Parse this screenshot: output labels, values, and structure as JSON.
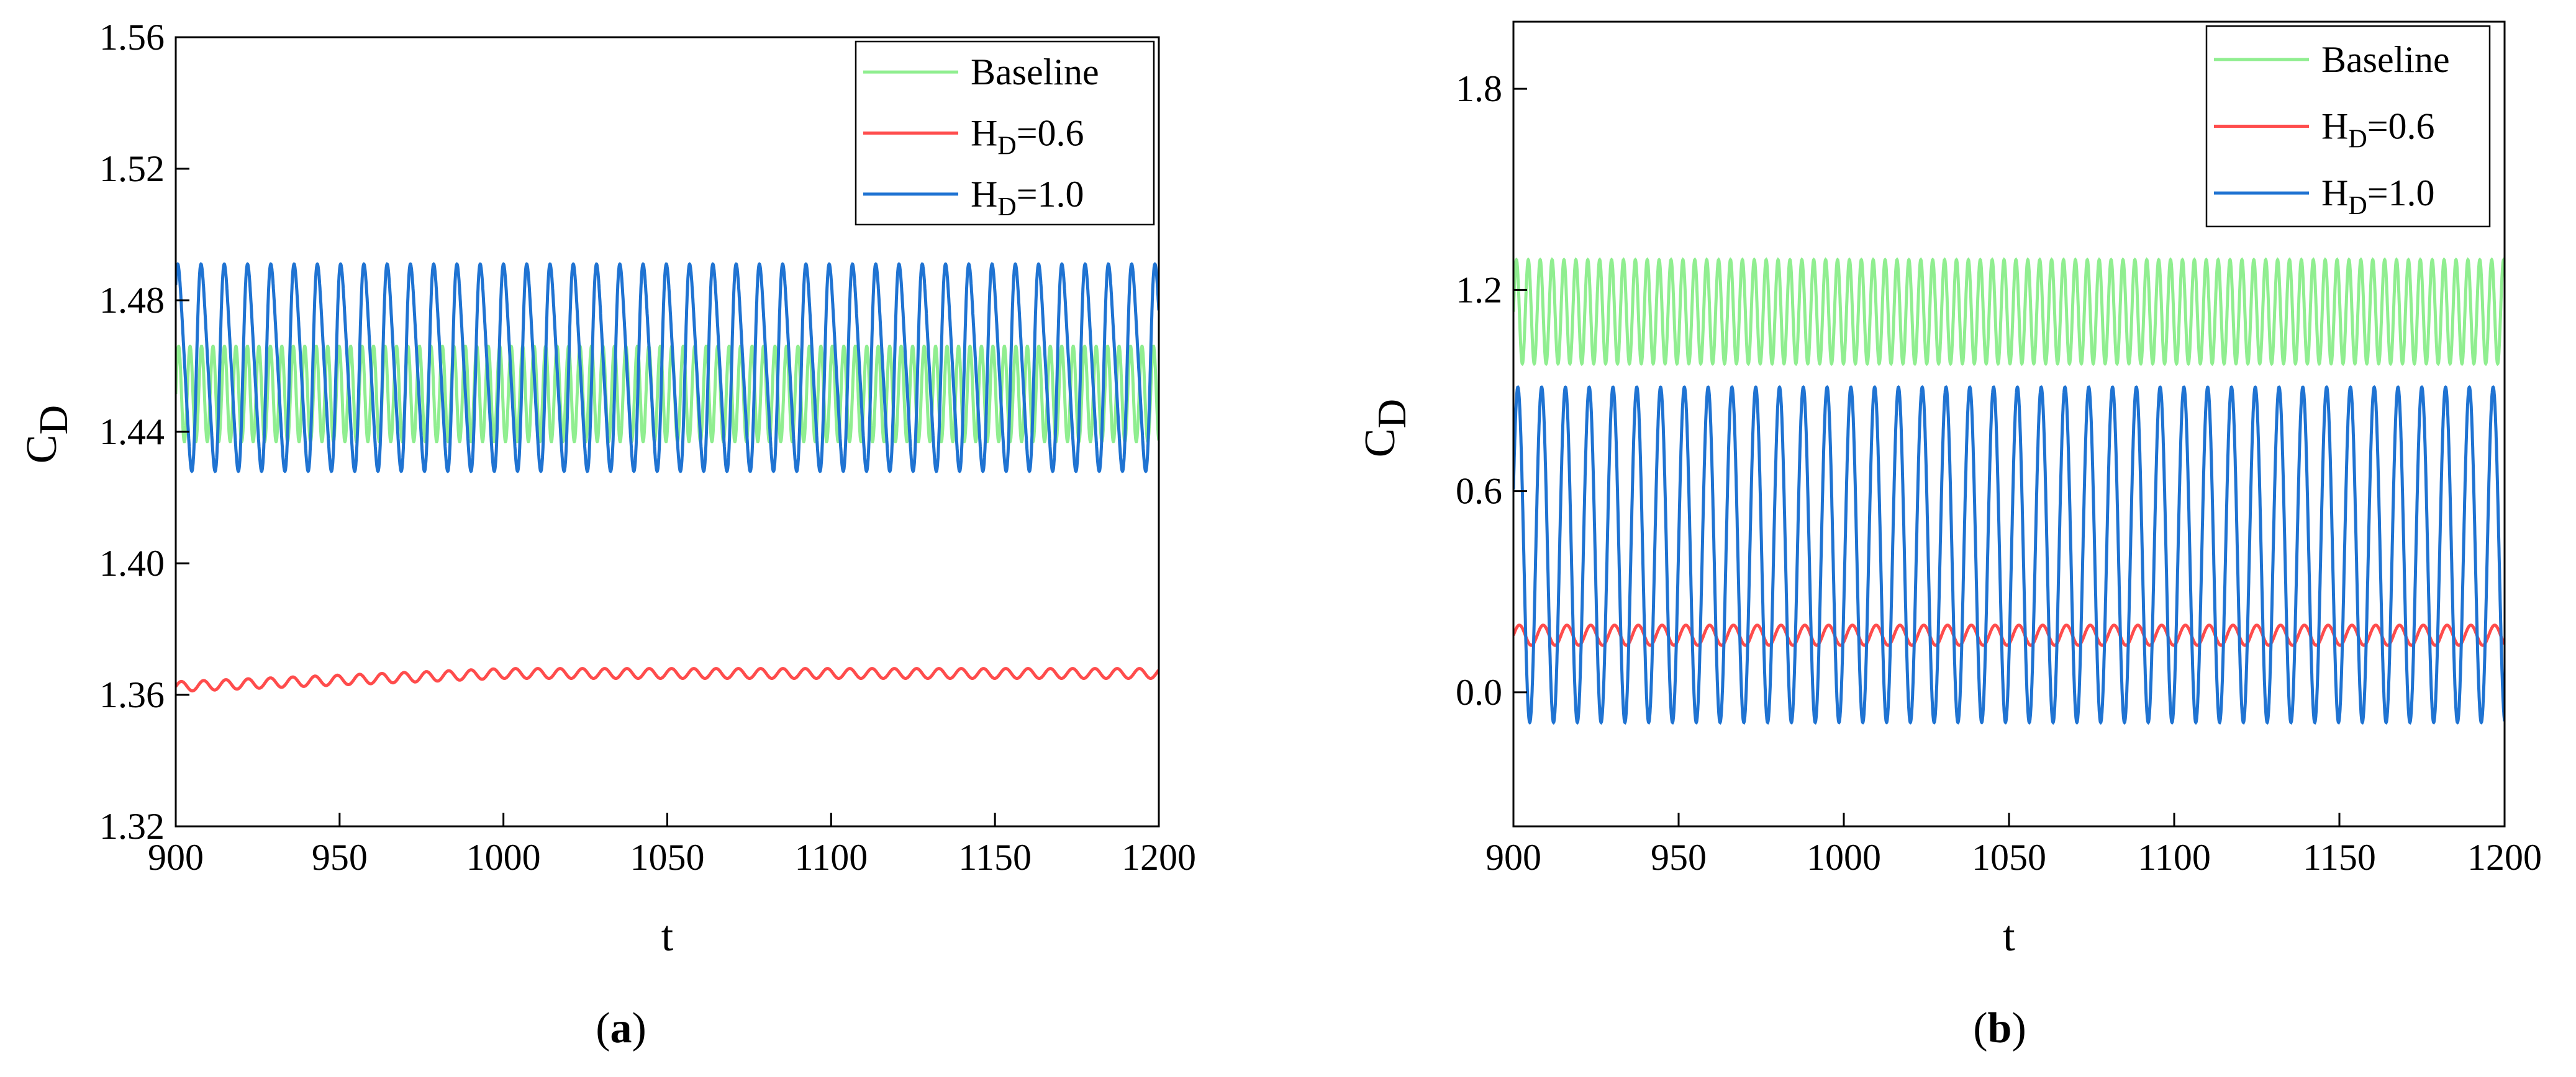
{
  "colors": {
    "baseline": "#90ee90",
    "hd06": "#ff4c4c",
    "hd10": "#1f73d2",
    "axis": "#000000"
  },
  "chart_data": [
    {
      "type": "line",
      "caption": "a",
      "xlabel": "t",
      "ylabel_main": "C",
      "ylabel_sub": "D",
      "xlim": [
        900,
        1200
      ],
      "ylim": [
        1.32,
        1.56
      ],
      "xticks": [
        "900",
        "950",
        "1000",
        "1050",
        "1100",
        "1150",
        "1200"
      ],
      "yticks": [
        "1.32",
        "1.36",
        "1.40",
        "1.44",
        "1.48",
        "1.52",
        "1.56"
      ],
      "legend": {
        "position": "top-right"
      },
      "series": [
        {
          "name": "Baseline",
          "label_main": "Baseline",
          "label_sub": "",
          "label_tail": "",
          "color_key": "baseline",
          "min": 1.437,
          "max": 1.466,
          "period": 3.5,
          "phase": 0.0,
          "shape": "sine"
        },
        {
          "name": "HD=0.6",
          "label_main": "H",
          "label_sub": "D",
          "label_tail": "=0.6",
          "color_key": "hd06",
          "start_min": 1.361,
          "start_max": 1.364,
          "end_min": 1.365,
          "end_max": 1.368,
          "period": 6.8,
          "phase": 0.0,
          "shape": "sine"
        },
        {
          "name": "HD=1.0",
          "label_main": "H",
          "label_sub": "D",
          "label_tail": "=1.0",
          "color_key": "hd10",
          "min": 1.428,
          "max": 1.491,
          "period": 7.1,
          "phase": 0.7,
          "shape": "skewed"
        }
      ]
    },
    {
      "type": "line",
      "caption": "b",
      "xlabel": "t",
      "ylabel_main": "C",
      "ylabel_sub": "D",
      "xlim": [
        900,
        1200
      ],
      "ylim": [
        -0.4,
        2.0
      ],
      "xticks": [
        "900",
        "950",
        "1000",
        "1050",
        "1100",
        "1150",
        "1200"
      ],
      "yticks": [
        "0.0",
        "0.6",
        "1.2",
        "1.8"
      ],
      "ytick_values": [
        0.0,
        0.6,
        1.2,
        1.8
      ],
      "legend": {
        "position": "top-right"
      },
      "series": [
        {
          "name": "Baseline",
          "label_main": "Baseline",
          "label_sub": "",
          "label_tail": "",
          "color_key": "baseline",
          "min": 0.98,
          "max": 1.29,
          "period": 3.6,
          "phase": 0.0,
          "shape": "sine"
        },
        {
          "name": "HD=0.6",
          "label_main": "H",
          "label_sub": "D",
          "label_tail": "=0.6",
          "color_key": "hd06",
          "start_min": 0.14,
          "start_max": 0.2,
          "end_min": 0.14,
          "end_max": 0.2,
          "period": 7.2,
          "phase": 0.0,
          "shape": "sine"
        },
        {
          "name": "HD=1.0",
          "label_main": "H",
          "label_sub": "D",
          "label_tail": "=1.0",
          "color_key": "hd10",
          "min": -0.09,
          "max": 0.91,
          "period": 7.2,
          "phase": 0.4,
          "shape": "sine"
        }
      ]
    }
  ]
}
